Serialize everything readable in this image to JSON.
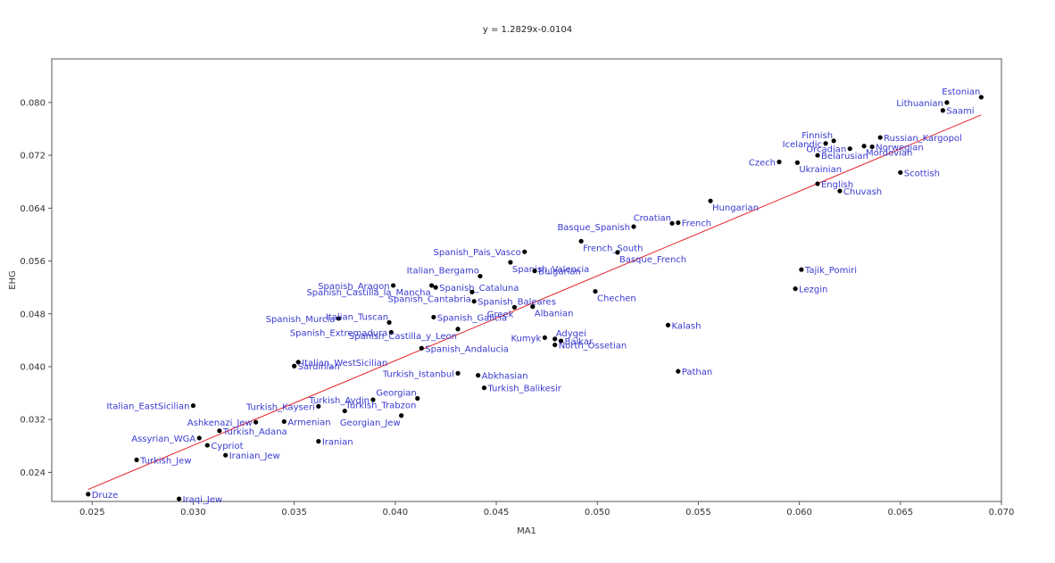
{
  "equation_text": "y = 1.2829x-0.0104",
  "chart_data": {
    "type": "scatter",
    "title": "y = 1.2829x-0.0104",
    "xlabel": "MA1",
    "ylabel": "EHG",
    "xlim": [
      0.023,
      0.07
    ],
    "ylim": [
      0.0196,
      0.0866
    ],
    "x_ticks": [
      0.025,
      0.03,
      0.035,
      0.04,
      0.045,
      0.05,
      0.055,
      0.06,
      0.065,
      0.07
    ],
    "x_tick_labels": [
      "0.025",
      "0.030",
      "0.035",
      "0.040",
      "0.045",
      "0.050",
      "0.055",
      "0.060",
      "0.065",
      "0.070"
    ],
    "y_ticks": [
      0.024,
      0.032,
      0.04,
      0.048,
      0.056,
      0.064,
      0.072,
      0.08
    ],
    "y_tick_labels": [
      "0.024",
      "0.032",
      "0.040",
      "0.048",
      "0.056",
      "0.064",
      "0.072",
      "0.080"
    ],
    "trendline": {
      "slope": 1.2829,
      "intercept": -0.0104,
      "x_range": [
        0.0248,
        0.069
      ],
      "color": "#e8202a"
    },
    "grid": false,
    "legend": "none",
    "point_color": "#000000",
    "label_color": "#3a3ad0",
    "points": [
      {
        "label": "Estonian",
        "x": 0.069,
        "y": 0.0808,
        "anchor": "end",
        "side": "above"
      },
      {
        "label": "Lithuanian",
        "x": 0.0673,
        "y": 0.08,
        "anchor": "end",
        "side": "left"
      },
      {
        "label": "Saami",
        "x": 0.0671,
        "y": 0.0788,
        "anchor": "start",
        "side": "right"
      },
      {
        "label": "Finnish",
        "x": 0.0617,
        "y": 0.0742,
        "anchor": "end",
        "side": "above"
      },
      {
        "label": "Icelandic",
        "x": 0.0613,
        "y": 0.0738,
        "anchor": "end",
        "side": "left"
      },
      {
        "label": "Russian_Kargopol",
        "x": 0.064,
        "y": 0.0747,
        "anchor": "start",
        "side": "right"
      },
      {
        "label": "Norwegian",
        "x": 0.0636,
        "y": 0.0733,
        "anchor": "start",
        "side": "right"
      },
      {
        "label": "Mordovian",
        "x": 0.0632,
        "y": 0.0734,
        "anchor": "start",
        "side": "below"
      },
      {
        "label": "Orcadian",
        "x": 0.0625,
        "y": 0.073,
        "anchor": "end",
        "side": "left"
      },
      {
        "label": "Belarusian",
        "x": 0.0609,
        "y": 0.072,
        "anchor": "start",
        "side": "right"
      },
      {
        "label": "Czech",
        "x": 0.059,
        "y": 0.071,
        "anchor": "end",
        "side": "left"
      },
      {
        "label": "Ukrainian",
        "x": 0.0599,
        "y": 0.0709,
        "anchor": "start",
        "side": "below"
      },
      {
        "label": "Scottish",
        "x": 0.065,
        "y": 0.0694,
        "anchor": "start",
        "side": "right"
      },
      {
        "label": "English",
        "x": 0.0609,
        "y": 0.0677,
        "anchor": "start",
        "side": "right"
      },
      {
        "label": "Chuvash",
        "x": 0.062,
        "y": 0.0666,
        "anchor": "start",
        "side": "right"
      },
      {
        "label": "Hungarian",
        "x": 0.0556,
        "y": 0.0651,
        "anchor": "start",
        "side": "below"
      },
      {
        "label": "Croatian",
        "x": 0.0537,
        "y": 0.0617,
        "anchor": "end",
        "side": "above"
      },
      {
        "label": "French",
        "x": 0.054,
        "y": 0.0618,
        "anchor": "start",
        "side": "right"
      },
      {
        "label": "Basque_Spanish",
        "x": 0.0518,
        "y": 0.0612,
        "anchor": "end",
        "side": "left"
      },
      {
        "label": "French_South",
        "x": 0.0492,
        "y": 0.059,
        "anchor": "start",
        "side": "below"
      },
      {
        "label": "Basque_French",
        "x": 0.051,
        "y": 0.0573,
        "anchor": "start",
        "side": "below"
      },
      {
        "label": "Spanish_Pais_Vasco",
        "x": 0.0464,
        "y": 0.0574,
        "anchor": "end",
        "side": "left"
      },
      {
        "label": "Spanish_Valencia",
        "x": 0.0457,
        "y": 0.0558,
        "anchor": "start",
        "side": "below"
      },
      {
        "label": "Bulgarian",
        "x": 0.0469,
        "y": 0.0545,
        "anchor": "start",
        "side": "right"
      },
      {
        "label": "Italian_Bergamo",
        "x": 0.0442,
        "y": 0.0537,
        "anchor": "end",
        "side": "above"
      },
      {
        "label": "Spanish_Aragon",
        "x": 0.0399,
        "y": 0.0523,
        "anchor": "end",
        "side": "left"
      },
      {
        "label": "Spanish_Castilla_la_Mancha",
        "x": 0.0418,
        "y": 0.0523,
        "anchor": "end",
        "side": "below"
      },
      {
        "label": "Spanish_Cataluna",
        "x": 0.042,
        "y": 0.052,
        "anchor": "start",
        "side": "right"
      },
      {
        "label": "Spanish_Cantabria",
        "x": 0.0438,
        "y": 0.0513,
        "anchor": "end",
        "side": "below"
      },
      {
        "label": "Chechen",
        "x": 0.0499,
        "y": 0.0514,
        "anchor": "start",
        "side": "below"
      },
      {
        "label": "Spanish_Baleares",
        "x": 0.0439,
        "y": 0.0499,
        "anchor": "start",
        "side": "right"
      },
      {
        "label": "Greek",
        "x": 0.0459,
        "y": 0.049,
        "anchor": "end",
        "side": "below"
      },
      {
        "label": "Albanian",
        "x": 0.0468,
        "y": 0.0491,
        "anchor": "start",
        "side": "below"
      },
      {
        "label": "Spanish_Murcia",
        "x": 0.0372,
        "y": 0.0473,
        "anchor": "end",
        "side": "left"
      },
      {
        "label": "Italian_Tuscan",
        "x": 0.0397,
        "y": 0.0467,
        "anchor": "end",
        "side": "above"
      },
      {
        "label": "Spanish_Galicia",
        "x": 0.0419,
        "y": 0.0475,
        "anchor": "start",
        "side": "right"
      },
      {
        "label": "Spanish_Extremadura",
        "x": 0.0398,
        "y": 0.0452,
        "anchor": "end",
        "side": "left"
      },
      {
        "label": "Spanish_Castilla_y_Leon",
        "x": 0.0431,
        "y": 0.0457,
        "anchor": "end",
        "side": "below"
      },
      {
        "label": "Adygei",
        "x": 0.0479,
        "y": 0.0442,
        "anchor": "start",
        "side": "above"
      },
      {
        "label": "Kumyk",
        "x": 0.0474,
        "y": 0.0444,
        "anchor": "end",
        "side": "left"
      },
      {
        "label": "Balkar",
        "x": 0.0482,
        "y": 0.0439,
        "anchor": "start",
        "side": "right"
      },
      {
        "label": "North_Ossetian",
        "x": 0.0479,
        "y": 0.0433,
        "anchor": "start",
        "side": "right"
      },
      {
        "label": "Kalash",
        "x": 0.0535,
        "y": 0.0463,
        "anchor": "start",
        "side": "right"
      },
      {
        "label": "Spanish_Andalucia",
        "x": 0.0413,
        "y": 0.0428,
        "anchor": "start",
        "side": "right"
      },
      {
        "label": "Tajik_Pomiri",
        "x": 0.0601,
        "y": 0.0547,
        "anchor": "start",
        "side": "right"
      },
      {
        "label": "Lezgin",
        "x": 0.0598,
        "y": 0.0518,
        "anchor": "start",
        "side": "right"
      },
      {
        "label": "Italian_WestSicilian",
        "x": 0.0352,
        "y": 0.0407,
        "anchor": "start",
        "side": "right"
      },
      {
        "label": "Sardinian",
        "x": 0.035,
        "y": 0.0401,
        "anchor": "start",
        "side": "right"
      },
      {
        "label": "Turkish_Istanbul",
        "x": 0.0431,
        "y": 0.039,
        "anchor": "end",
        "side": "left"
      },
      {
        "label": "Abkhasian",
        "x": 0.0441,
        "y": 0.0387,
        "anchor": "start",
        "side": "right"
      },
      {
        "label": "Pathan",
        "x": 0.054,
        "y": 0.0393,
        "anchor": "start",
        "side": "right"
      },
      {
        "label": "Turkish_Balikesir",
        "x": 0.0444,
        "y": 0.0368,
        "anchor": "start",
        "side": "right"
      },
      {
        "label": "Georgian",
        "x": 0.0411,
        "y": 0.0352,
        "anchor": "end",
        "side": "above"
      },
      {
        "label": "Turkish_Aydin",
        "x": 0.0389,
        "y": 0.035,
        "anchor": "end",
        "side": "left"
      },
      {
        "label": "Italian_EastSicilian",
        "x": 0.03,
        "y": 0.0341,
        "anchor": "end",
        "side": "left"
      },
      {
        "label": "Turkish_Kayseri",
        "x": 0.0362,
        "y": 0.034,
        "anchor": "end",
        "side": "left"
      },
      {
        "label": "Turkish_Trabzon",
        "x": 0.0375,
        "y": 0.0333,
        "anchor": "start",
        "side": "above"
      },
      {
        "label": "Georgian_Jew",
        "x": 0.0403,
        "y": 0.0326,
        "anchor": "end",
        "side": "below"
      },
      {
        "label": "Ashkenazi_Jew",
        "x": 0.0331,
        "y": 0.0316,
        "anchor": "end",
        "side": "left"
      },
      {
        "label": "Armenian",
        "x": 0.0345,
        "y": 0.0317,
        "anchor": "start",
        "side": "right"
      },
      {
        "label": "Turkish_Adana",
        "x": 0.0313,
        "y": 0.0303,
        "anchor": "start",
        "side": "right"
      },
      {
        "label": "Assyrian_WGA",
        "x": 0.0303,
        "y": 0.0292,
        "anchor": "end",
        "side": "left"
      },
      {
        "label": "Iranian",
        "x": 0.0362,
        "y": 0.0287,
        "anchor": "start",
        "side": "right"
      },
      {
        "label": "Cypriot",
        "x": 0.0307,
        "y": 0.0281,
        "anchor": "start",
        "side": "right"
      },
      {
        "label": "Iranian_Jew",
        "x": 0.0316,
        "y": 0.0266,
        "anchor": "start",
        "side": "right"
      },
      {
        "label": "Turkish_Jew",
        "x": 0.0272,
        "y": 0.0259,
        "anchor": "start",
        "side": "right"
      },
      {
        "label": "Druze",
        "x": 0.0248,
        "y": 0.0207,
        "anchor": "start",
        "side": "right"
      },
      {
        "label": "Iraqi_Jew",
        "x": 0.0293,
        "y": 0.02,
        "anchor": "start",
        "side": "right"
      }
    ]
  }
}
